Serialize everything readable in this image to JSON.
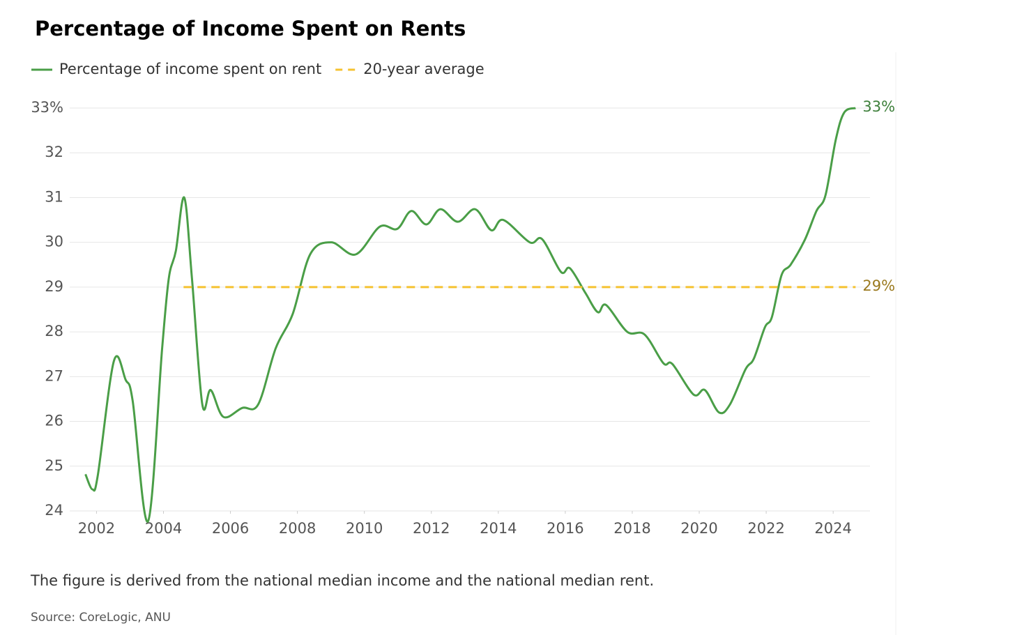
{
  "chart_data": {
    "type": "line",
    "title": "Percentage of Income Spent on Rents",
    "note": "The figure is derived from the national median income and the national median rent.",
    "source": "Source: CoreLogic, ANU",
    "xlim": [
      2001.2,
      2025.1
    ],
    "xticks": [
      2002,
      2004,
      2006,
      2008,
      2010,
      2012,
      2014,
      2016,
      2018,
      2020,
      2022,
      2024
    ],
    "ylim": [
      24,
      33
    ],
    "yticks": [
      24,
      25,
      26,
      27,
      28,
      29,
      30,
      31,
      32,
      {
        "value": 33,
        "label": "33%"
      }
    ],
    "grid": true,
    "legend": "top-left",
    "series": [
      {
        "name": "Percentage of income spent on rent",
        "color": "#4a9e47",
        "dashed": false,
        "end_label": "33%",
        "x": [
          2001.67,
          2001.88,
          2002.04,
          2002.52,
          2002.87,
          2003.08,
          2003.54,
          2003.96,
          2004.16,
          2004.37,
          2004.62,
          2004.85,
          2005.16,
          2005.41,
          2005.79,
          2006.35,
          2006.83,
          2007.35,
          2007.86,
          2008.38,
          2009.01,
          2009.74,
          2010.46,
          2010.98,
          2011.4,
          2011.85,
          2012.27,
          2012.79,
          2013.31,
          2013.79,
          2014.15,
          2014.94,
          2015.31,
          2015.87,
          2016.14,
          2016.6,
          2016.97,
          2017.22,
          2017.85,
          2018.37,
          2018.93,
          2019.2,
          2019.83,
          2020.17,
          2020.59,
          2020.92,
          2021.38,
          2021.63,
          2021.96,
          2022.17,
          2022.46,
          2022.73,
          2023.15,
          2023.5,
          2023.77,
          2024.08,
          2024.33,
          2024.67
        ],
        "values": [
          24.82,
          24.48,
          24.8,
          27.35,
          26.93,
          26.46,
          23.77,
          27.63,
          29.2,
          29.81,
          31.0,
          29.2,
          26.38,
          26.7,
          26.1,
          26.3,
          26.38,
          27.63,
          28.4,
          29.73,
          30.0,
          29.73,
          30.35,
          30.3,
          30.7,
          30.4,
          30.74,
          30.46,
          30.74,
          30.27,
          30.5,
          30.0,
          30.07,
          29.34,
          29.42,
          28.87,
          28.44,
          28.6,
          28.0,
          27.94,
          27.3,
          27.28,
          26.6,
          26.7,
          26.2,
          26.38,
          27.16,
          27.4,
          28.1,
          28.33,
          29.27,
          29.5,
          30.05,
          30.7,
          31.05,
          32.3,
          32.9,
          33.0
        ]
      },
      {
        "name": "20-year average",
        "color": "#f5c230",
        "dashed": true,
        "end_label": "29%",
        "x": [
          2004.6,
          2024.67
        ],
        "values": [
          29,
          29
        ]
      }
    ]
  }
}
